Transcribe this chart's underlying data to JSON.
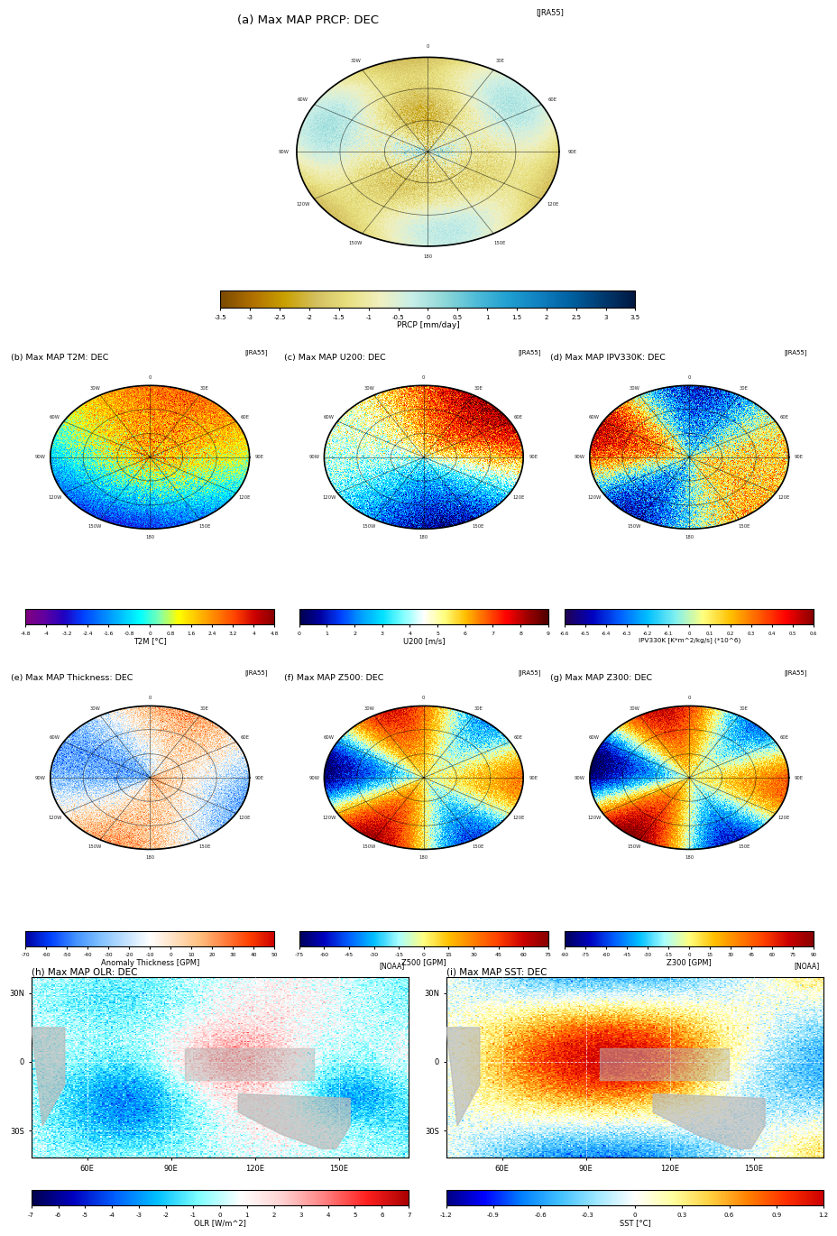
{
  "title_a": "(a) Max MAP PRCP: DEC",
  "title_b": "(b) Max MAP T2M: DEC",
  "title_c": "(c) Max MAP U200: DEC",
  "title_d": "(d) Max MAP IPV330K: DEC",
  "title_e": "(e) Max MAP Thickness: DEC",
  "title_f": "(f) Max MAP Z500: DEC",
  "title_g": "(g) Max MAP Z300: DEC",
  "title_h": "(h) Max MAP OLR: DEC",
  "title_i": "(i) Max MAP SST: DEC",
  "source_jra": "[JRA55]",
  "source_noaa": "[NOAA]",
  "cbar_a_label": "PRCP [mm/day]",
  "cbar_a_ticks": [
    "-3.5",
    "-3",
    "-2.5",
    "-2",
    "-1.5",
    "-1",
    "-0.5",
    "0",
    "0.5",
    "1",
    "1.5",
    "2",
    "2.5",
    "3",
    "3.5"
  ],
  "cbar_b_label": "T2M [°C]",
  "cbar_b_ticks": [
    "-4.8",
    "-4",
    "-3.2",
    "-2.4",
    "-1.6",
    "-0.8",
    "0",
    "0.8",
    "1.6",
    "2.4",
    "3.2",
    "4",
    "4.8"
  ],
  "cbar_c_label": "U200 [m/s]",
  "cbar_c_ticks": [
    "0",
    "1",
    "2",
    "3",
    "4",
    "5",
    "6",
    "7",
    "8",
    "9"
  ],
  "cbar_d_label": "IPV330K [K*m^2/kg/s] (*10^6)",
  "cbar_d_ticks": [
    "-6.6",
    "-6.5",
    "-6.4",
    "-6.3",
    "-6.2",
    "-6.1",
    "0",
    "0.1",
    "0.2",
    "0.3",
    "0.4",
    "0.5",
    "0.6"
  ],
  "cbar_e_label": "Anomaly Thickness [GPM]",
  "cbar_e_ticks": [
    "-70",
    "-60",
    "-50",
    "-40",
    "-30",
    "-20",
    "-10",
    "0",
    "10",
    "20",
    "30",
    "40",
    "50"
  ],
  "cbar_f_label": "Z500 [GPM]",
  "cbar_f_ticks": [
    "-75",
    "-60",
    "-45",
    "-30",
    "-15",
    "0",
    "15",
    "30",
    "45",
    "60",
    "75"
  ],
  "cbar_g_label": "Z300 [GPM]",
  "cbar_g_ticks": [
    "-90",
    "-75",
    "-60",
    "-45",
    "-30",
    "-15",
    "0",
    "15",
    "30",
    "45",
    "60",
    "75",
    "90"
  ],
  "cbar_h_label": "OLR [W/m^2]",
  "cbar_h_ticks": [
    "-7",
    "-6",
    "-5",
    "-4",
    "-3",
    "-2",
    "-1",
    "0",
    "1",
    "2",
    "3",
    "4",
    "5",
    "6",
    "7"
  ],
  "cbar_i_label": "SST [°C]",
  "cbar_i_ticks": [
    "-1.2",
    "-0.9",
    "-0.6",
    "-0.3",
    "0",
    "0.3",
    "0.6",
    "0.9",
    "1.2"
  ]
}
